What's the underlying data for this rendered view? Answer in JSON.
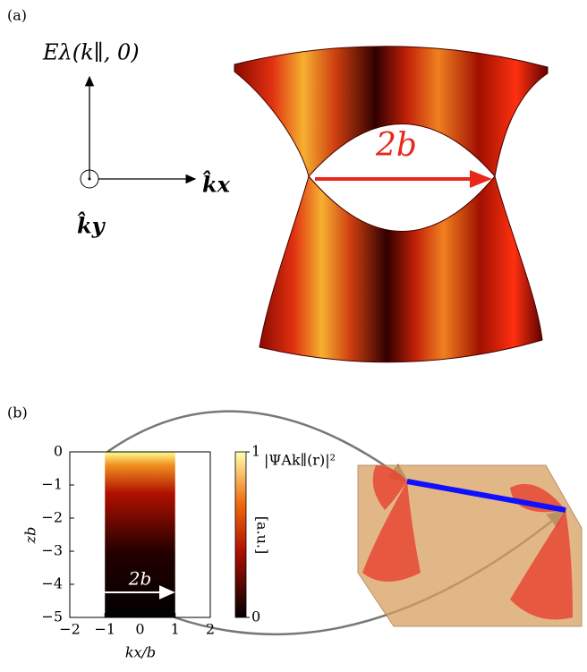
{
  "panel_a": {
    "label": "(a)",
    "energy_label": "Eλ(k∥, 0)",
    "kx_label": "k̂x",
    "ky_label": "k̂y",
    "separation_label": "2b"
  },
  "panel_b": {
    "label": "(b)",
    "heatmap": {
      "xlabel": "kx/b",
      "ylabel": "zb",
      "xlim": [
        -2,
        2
      ],
      "ylim": [
        -5,
        0
      ],
      "xticks": [
        {
          "value": -2,
          "label": "−2"
        },
        {
          "value": -1,
          "label": "−1"
        },
        0,
        1,
        2
      ],
      "yticks": [
        0,
        {
          "value": -1,
          "label": "−1"
        },
        {
          "value": -2,
          "label": "−2"
        },
        {
          "value": -3,
          "label": "−3"
        },
        {
          "value": -4,
          "label": "−4"
        },
        {
          "value": -5,
          "label": "−5"
        }
      ],
      "arrow_label": "2b",
      "colorbar": {
        "label": "|ΨAk∥(r)|²",
        "unit": "[a.u.]",
        "ticks": [
          1,
          0
        ]
      }
    }
  }
}
